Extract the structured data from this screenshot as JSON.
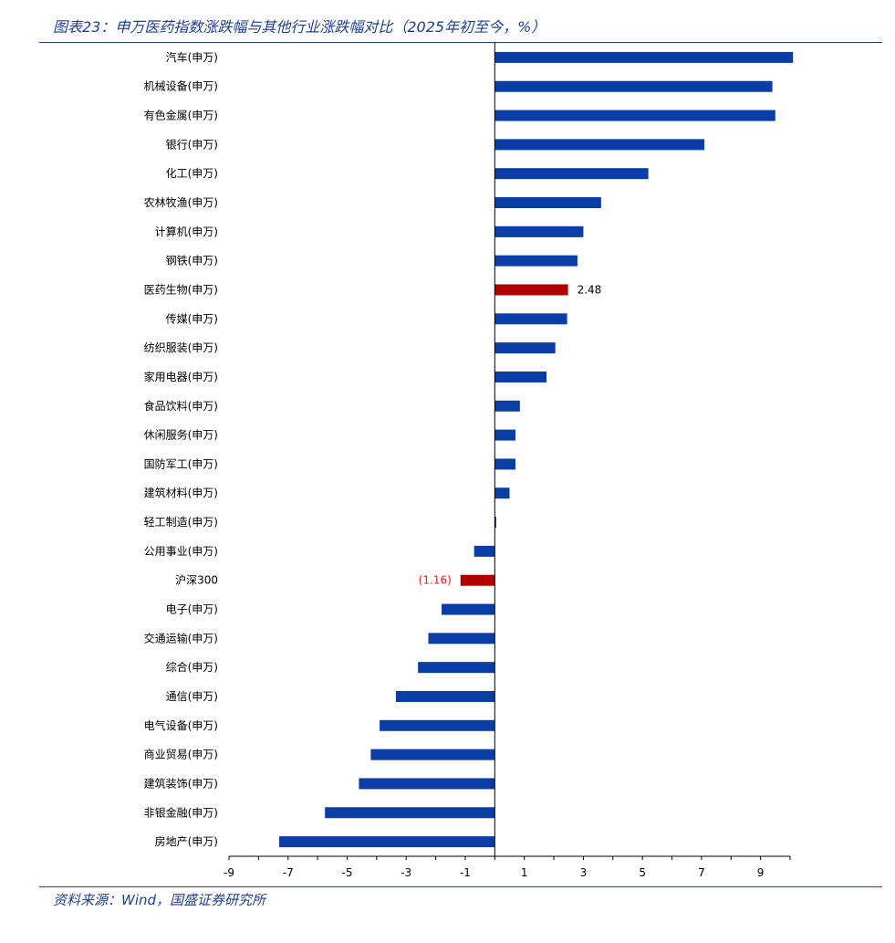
{
  "title": "图表23：申万医药指数涨跌幅与其他行业涨跌幅对比（2025年初至今，%）",
  "source": "资料来源：Wind，国盛证券研究所",
  "colors": {
    "default_bar": "#0a3ea6",
    "highlight_bar": "#b00000",
    "negative_label": "#e02020",
    "positive_label": "#000000",
    "title": "#1f3f8f"
  },
  "chart_data": {
    "type": "bar",
    "orientation": "horizontal",
    "xlim": [
      -9,
      10
    ],
    "x_ticks": [
      -9,
      -7,
      -5,
      -3,
      -1,
      1,
      3,
      5,
      7,
      9
    ],
    "grid": false,
    "legend": "none",
    "categories": [
      "汽车(申万)",
      "机械设备(申万)",
      "有色金属(申万)",
      "银行(申万)",
      "化工(申万)",
      "农林牧渔(申万)",
      "计算机(申万)",
      "钢铁(申万)",
      "医药生物(申万)",
      "传媒(申万)",
      "纺织服装(申万)",
      "家用电器(申万)",
      "食品饮料(申万)",
      "休闲服务(申万)",
      "国防军工(申万)",
      "建筑材料(申万)",
      "轻工制造(申万)",
      "公用事业(申万)",
      "沪深300",
      "电子(申万)",
      "交通运输(申万)",
      "综合(申万)",
      "通信(申万)",
      "电气设备(申万)",
      "商业贸易(申万)",
      "建筑装饰(申万)",
      "非银金融(申万)",
      "房地产(申万)"
    ],
    "values": [
      10.1,
      9.4,
      9.5,
      7.1,
      5.2,
      3.6,
      3.0,
      2.8,
      2.48,
      2.45,
      2.05,
      1.75,
      0.85,
      0.7,
      0.7,
      0.5,
      0.05,
      -0.7,
      -1.16,
      -1.8,
      -2.25,
      -2.6,
      -3.35,
      -3.9,
      -4.2,
      -4.6,
      -5.75,
      -7.3
    ],
    "highlight": [
      "医药生物(申万)",
      "沪深300"
    ],
    "data_labels": [
      {
        "category": "医药生物(申万)",
        "text": "2.48"
      },
      {
        "category": "沪深300",
        "text": "(1.16)"
      }
    ]
  }
}
